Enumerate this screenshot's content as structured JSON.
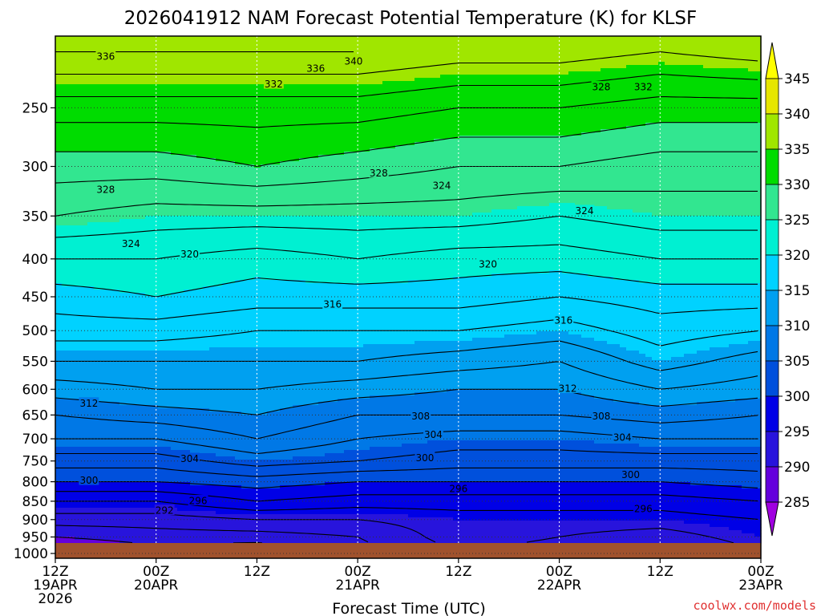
{
  "chart_data": {
    "type": "heatmap",
    "title": "2026041912 NAM Forecast Potential Temperature (K) for KLSF",
    "xlabel": "Forecast Time (UTC)",
    "ylabel": "",
    "credit": "coolwx.com/models",
    "credit_color": "#e03030",
    "x_ticks": [
      {
        "hours": 0,
        "line1": "12Z",
        "line2": "19APR",
        "line3": "2026"
      },
      {
        "hours": 12,
        "line1": "00Z",
        "line2": "20APR",
        "line3": ""
      },
      {
        "hours": 24,
        "line1": "12Z",
        "line2": "",
        "line3": ""
      },
      {
        "hours": 36,
        "line1": "00Z",
        "line2": "21APR",
        "line3": ""
      },
      {
        "hours": 48,
        "line1": "12Z",
        "line2": "",
        "line3": ""
      },
      {
        "hours": 60,
        "line1": "00Z",
        "line2": "22APR",
        "line3": ""
      },
      {
        "hours": 72,
        "line1": "12Z",
        "line2": "",
        "line3": ""
      },
      {
        "hours": 84,
        "line1": "00Z",
        "line2": "23APR",
        "line3": ""
      }
    ],
    "xlim_hours": [
      0,
      84
    ],
    "y_ticks": [
      250,
      300,
      350,
      400,
      450,
      500,
      550,
      600,
      650,
      700,
      750,
      800,
      850,
      900,
      950,
      1000
    ],
    "y_tick_labels": [
      "250",
      "300",
      "350",
      "400",
      "450",
      "500",
      "550",
      "600",
      "650",
      "700",
      "750",
      "800",
      "850",
      "900",
      "950",
      "1000"
    ],
    "ylim_hPa": [
      1015,
      200
    ],
    "y_scale": "log-pressure",
    "colorbar": {
      "ticks": [
        "345",
        "340",
        "335",
        "330",
        "325",
        "320",
        "315",
        "310",
        "305",
        "300",
        "295",
        "290",
        "285"
      ],
      "bands": [
        {
          "min": 340,
          "max": 345,
          "color": "#e6e600"
        },
        {
          "min": 335,
          "max": 340,
          "color": "#a0e600"
        },
        {
          "min": 330,
          "max": 335,
          "color": "#00dc00"
        },
        {
          "min": 325,
          "max": 330,
          "color": "#32e690"
        },
        {
          "min": 320,
          "max": 325,
          "color": "#00f0d2"
        },
        {
          "min": 315,
          "max": 320,
          "color": "#00d2ff"
        },
        {
          "min": 310,
          "max": 315,
          "color": "#00a0f0"
        },
        {
          "min": 305,
          "max": 310,
          "color": "#0078e6"
        },
        {
          "min": 300,
          "max": 305,
          "color": "#0050dc"
        },
        {
          "min": 295,
          "max": 300,
          "color": "#0000e6"
        },
        {
          "min": 290,
          "max": 295,
          "color": "#2814dc"
        },
        {
          "min": 285,
          "max": 290,
          "color": "#6400dc"
        }
      ],
      "over_color": "#ffff00",
      "under_color": "#a000e0"
    },
    "ground_color": "#a0522d",
    "profile_hours": [
      0,
      12,
      24,
      36,
      48,
      60,
      72,
      84
    ],
    "profile_levels_hPa": [
      1000,
      950,
      900,
      850,
      800,
      750,
      700,
      650,
      600,
      550,
      500,
      450,
      400,
      350,
      300,
      250,
      210
    ],
    "theta_profiles_K": [
      [
        287,
        290,
        293,
        296,
        300,
        303,
        306,
        308,
        311,
        314,
        317,
        319,
        322,
        326,
        329,
        333,
        338
      ],
      [
        289,
        291,
        293,
        296,
        300,
        303,
        306,
        309,
        312,
        314,
        317,
        320,
        322,
        325,
        329,
        333,
        338
      ],
      [
        288,
        291,
        294,
        298,
        301,
        305,
        308,
        310,
        312,
        314,
        316,
        319,
        321,
        325,
        330,
        333,
        338
      ],
      [
        291,
        292,
        294,
        297,
        300,
        304,
        306,
        308,
        311,
        314,
        316,
        319,
        322,
        325,
        329,
        333,
        338
      ],
      [
        294,
        295,
        295,
        297,
        300,
        303,
        305,
        308,
        310,
        313,
        316,
        319,
        321,
        325,
        328,
        332,
        337
      ],
      [
        293,
        294,
        295,
        297,
        300,
        303,
        305,
        308,
        310,
        312,
        315,
        318,
        321,
        324,
        328,
        332,
        337
      ],
      [
        291,
        293,
        295,
        297,
        300,
        303,
        306,
        309,
        312,
        315,
        317,
        319,
        322,
        325,
        327,
        331,
        336
      ],
      [
        294,
        295,
        296,
        298,
        301,
        303,
        306,
        308,
        311,
        313,
        316,
        319,
        322,
        325,
        327,
        331,
        337
      ]
    ],
    "contour_labels": [
      {
        "text": "336",
        "hours": 6.0,
        "hPa": 213
      },
      {
        "text": "340",
        "hours": 35.5,
        "hPa": 216
      },
      {
        "text": "336",
        "hours": 31.0,
        "hPa": 221
      },
      {
        "text": "332",
        "hours": 26.0,
        "hPa": 232
      },
      {
        "text": "328",
        "hours": 65.0,
        "hPa": 234
      },
      {
        "text": "332",
        "hours": 70.0,
        "hPa": 234
      },
      {
        "text": "328",
        "hours": 38.5,
        "hPa": 306
      },
      {
        "text": "324",
        "hours": 46.0,
        "hPa": 318
      },
      {
        "text": "328",
        "hours": 6.0,
        "hPa": 322
      },
      {
        "text": "324",
        "hours": 63.0,
        "hPa": 344
      },
      {
        "text": "324",
        "hours": 9.0,
        "hPa": 381
      },
      {
        "text": "320",
        "hours": 16.0,
        "hPa": 394
      },
      {
        "text": "320",
        "hours": 51.5,
        "hPa": 406
      },
      {
        "text": "316",
        "hours": 33.0,
        "hPa": 460
      },
      {
        "text": "316",
        "hours": 60.5,
        "hPa": 484
      },
      {
        "text": "312",
        "hours": 4.0,
        "hPa": 626
      },
      {
        "text": "312",
        "hours": 61.0,
        "hPa": 598
      },
      {
        "text": "308",
        "hours": 43.5,
        "hPa": 652
      },
      {
        "text": "308",
        "hours": 65.0,
        "hPa": 652
      },
      {
        "text": "304",
        "hours": 45.0,
        "hPa": 690
      },
      {
        "text": "304",
        "hours": 67.5,
        "hPa": 696
      },
      {
        "text": "304",
        "hours": 16.0,
        "hPa": 744
      },
      {
        "text": "300",
        "hours": 44.0,
        "hPa": 742
      },
      {
        "text": "300",
        "hours": 68.5,
        "hPa": 782
      },
      {
        "text": "300",
        "hours": 4.0,
        "hPa": 796
      },
      {
        "text": "296",
        "hours": 48.0,
        "hPa": 817
      },
      {
        "text": "296",
        "hours": 17.0,
        "hPa": 848
      },
      {
        "text": "292",
        "hours": 13.0,
        "hPa": 874
      },
      {
        "text": "296",
        "hours": 70.0,
        "hPa": 869
      }
    ]
  }
}
